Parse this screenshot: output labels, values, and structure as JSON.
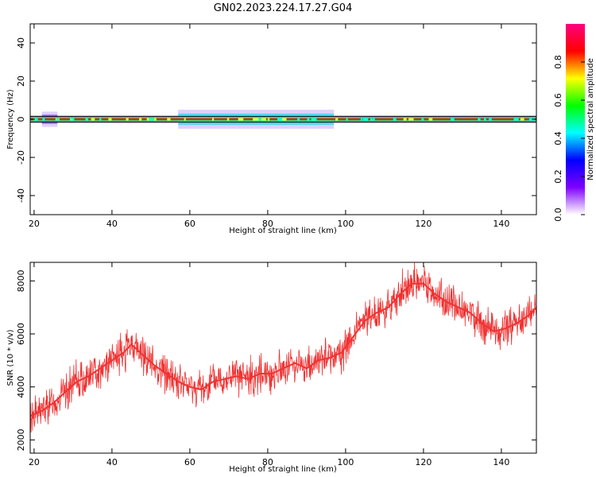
{
  "figure_title": "GN02.2023.224.17.27.G04",
  "chart_data": [
    {
      "type": "heatmap",
      "xlabel": "Height of straight line (km)",
      "ylabel": "Frequency (Hz)",
      "xlim": [
        19,
        149
      ],
      "ylim": [
        -50,
        50
      ],
      "xticks": [
        20,
        40,
        60,
        80,
        100,
        120,
        140
      ],
      "yticks": [
        -40,
        -20,
        0,
        20,
        40
      ],
      "colorbar": {
        "label": "Normalized spectral amplitude",
        "range": [
          0,
          1
        ],
        "ticks": [
          "0.0",
          "0.2",
          "0.4",
          "0.6",
          "0.8"
        ],
        "colors": [
          "#ffffff",
          "#7f00ff",
          "#0000ff",
          "#00ffff",
          "#00ff00",
          "#ffff00",
          "#ff0000",
          "#ff0080"
        ]
      },
      "reference_lines_hz": [
        -1.5,
        1.5
      ],
      "band_extent": [
        {
          "x": [
            19,
            22
          ],
          "halfwidth_hz": 2,
          "level": 0.3
        },
        {
          "x": [
            22,
            26
          ],
          "halfwidth_hz": 4,
          "level": 0.5
        },
        {
          "x": [
            26,
            57
          ],
          "halfwidth_hz": 2,
          "level": 0.3
        },
        {
          "x": [
            57,
            97
          ],
          "halfwidth_hz": 5,
          "level": 0.6
        },
        {
          "x": [
            97,
            149
          ],
          "halfwidth_hz": 2,
          "level": 0.3
        }
      ]
    },
    {
      "type": "line",
      "xlabel": "Height of straight line (km)",
      "ylabel": "SNR (10 * v/v)",
      "xlim": [
        19,
        149
      ],
      "ylim": [
        1500,
        8700
      ],
      "xticks": [
        20,
        40,
        60,
        80,
        100,
        120,
        140
      ],
      "yticks": [
        2000,
        4000,
        6000,
        8000
      ],
      "color": "#f03232",
      "series": [
        {
          "x": [
            19,
            22,
            25,
            28,
            31,
            34,
            37,
            40,
            43,
            45,
            48,
            51,
            54,
            57,
            60,
            63,
            66,
            69,
            72,
            75,
            78,
            81,
            84,
            87,
            90,
            93,
            96,
            99,
            102,
            105,
            108,
            111,
            114,
            117,
            120,
            123,
            126,
            129,
            132,
            135,
            138,
            141,
            144,
            147,
            149
          ],
          "values": [
            2900,
            3100,
            3400,
            3800,
            4200,
            4400,
            4700,
            5000,
            5300,
            5600,
            5200,
            4800,
            4500,
            4200,
            4000,
            3900,
            4200,
            4300,
            4400,
            4300,
            4500,
            4500,
            4700,
            4900,
            4700,
            5000,
            5100,
            5300,
            5900,
            6500,
            6800,
            7000,
            7500,
            7900,
            7900,
            7500,
            7200,
            7000,
            6800,
            6400,
            6100,
            6200,
            6400,
            6700,
            7000
          ]
        }
      ]
    }
  ]
}
